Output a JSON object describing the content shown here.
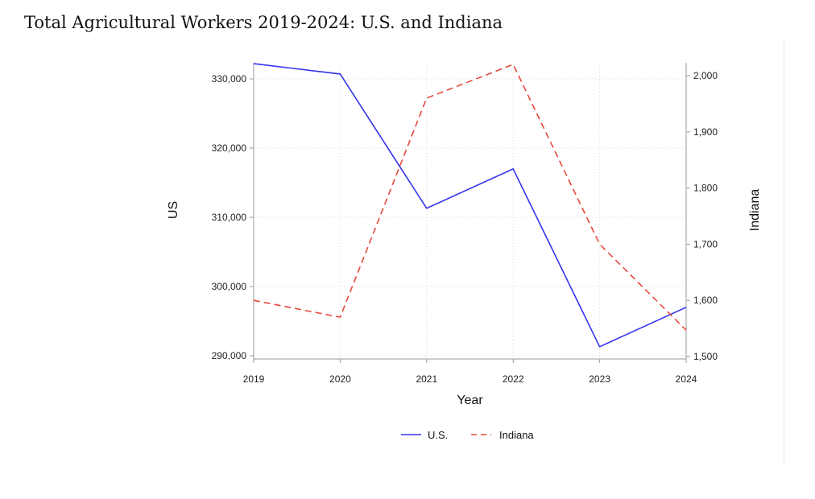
{
  "page": {
    "title": "Total Agricultural Workers 2019-2024: U.S. and Indiana"
  },
  "chart_data": {
    "type": "line",
    "x": [
      2019,
      2020,
      2021,
      2022,
      2023,
      2024
    ],
    "xlabel": "Year",
    "ylabel_left": "US",
    "ylabel_right": "Indiana",
    "ylim_left": [
      290000,
      330000
    ],
    "ylim_right": [
      1500,
      2000
    ],
    "yticks_left": [
      290000,
      300000,
      310000,
      320000,
      330000
    ],
    "yticks_left_labels": [
      "290,000",
      "300,000",
      "310,000",
      "320,000",
      "330,000"
    ],
    "yticks_right": [
      1500,
      1600,
      1700,
      1800,
      1900,
      2000
    ],
    "yticks_right_labels": [
      "1,500",
      "1,600",
      "1,700",
      "1,800",
      "1,900",
      "2,000"
    ],
    "xtick_labels": [
      "2019",
      "2020",
      "2021",
      "2022",
      "2023",
      "2024"
    ],
    "grid": true,
    "legend_position": "bottom",
    "series": [
      {
        "name": "U.S.",
        "axis": "left",
        "color": "#3333ee",
        "dash": "solid",
        "values": [
          332200,
          330700,
          311300,
          317000,
          291300,
          297000
        ]
      },
      {
        "name": "Indiana",
        "axis": "right",
        "color": "#e8483c",
        "dash": "dashed",
        "values": [
          1600,
          1570,
          1960,
          2020,
          1700,
          1547
        ]
      }
    ]
  }
}
